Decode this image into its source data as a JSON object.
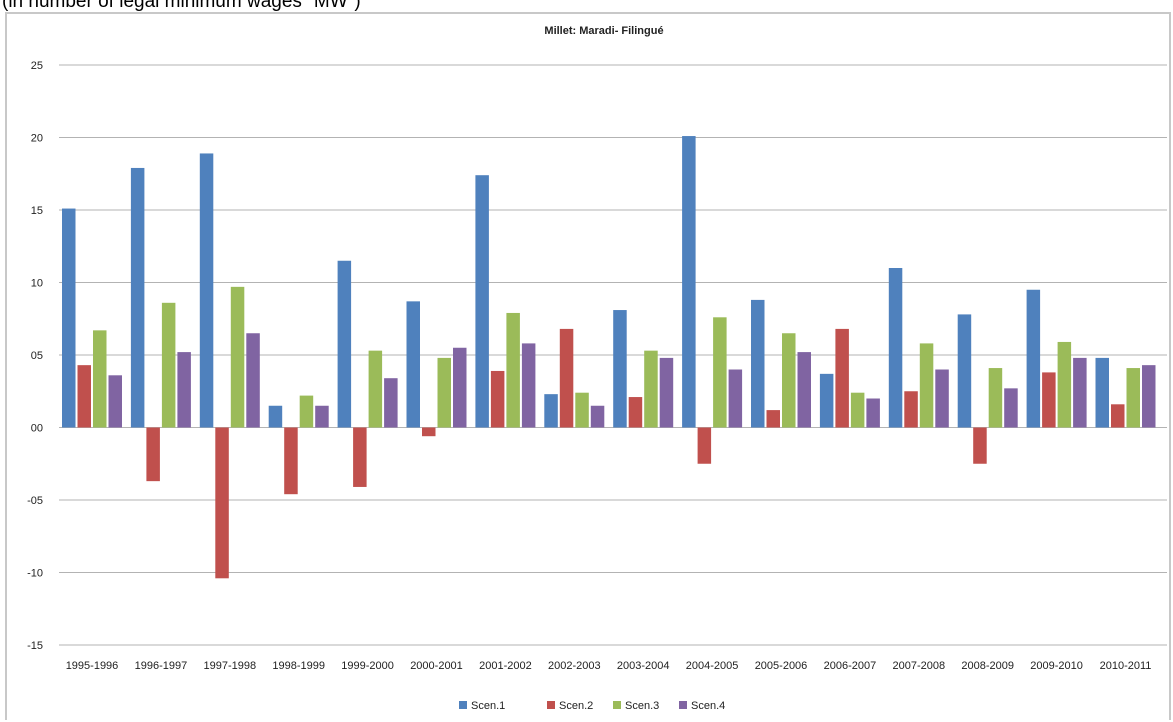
{
  "page": {
    "caption": "(in number of legal minimum wages \"MW\")"
  },
  "chart_data": {
    "type": "bar",
    "title": "Millet: Maradi- Filingué",
    "xlabel": "",
    "ylabel": "",
    "ylim": [
      -15,
      25
    ],
    "ytick_values": [
      25,
      20,
      15,
      10,
      5,
      0,
      -5,
      -10,
      -15
    ],
    "ytick_labels": [
      "25",
      "20",
      "15",
      "10",
      "05",
      "00",
      "-05",
      "-10",
      "-15"
    ],
    "grid": true,
    "legend_position": "bottom",
    "categories": [
      "1995-1996",
      "1996-1997",
      "1997-1998",
      "1998-1999",
      "1999-2000",
      "2000-2001",
      "2001-2002",
      "2002-2003",
      "2003-2004",
      "2004-2005",
      "2005-2006",
      "2006-2007",
      "2007-2008",
      "2008-2009",
      "2009-2010",
      "2010-2011"
    ],
    "series": [
      {
        "name": "Scen.1",
        "color": "#4f81bd",
        "values": [
          15.1,
          17.9,
          18.9,
          1.5,
          11.5,
          8.7,
          17.4,
          2.3,
          8.1,
          20.1,
          8.8,
          3.7,
          11.0,
          7.8,
          9.5,
          4.8
        ]
      },
      {
        "name": "Scen.2",
        "color": "#c0504d",
        "values": [
          4.3,
          -3.7,
          -10.4,
          -4.6,
          -4.1,
          -0.6,
          3.9,
          6.8,
          2.1,
          -2.5,
          1.2,
          6.8,
          2.5,
          -2.5,
          3.8,
          1.6
        ]
      },
      {
        "name": "Scen.3",
        "color": "#9bbb59",
        "values": [
          6.7,
          8.6,
          9.7,
          2.2,
          5.3,
          4.8,
          7.9,
          2.4,
          5.3,
          7.6,
          6.5,
          2.4,
          5.8,
          4.1,
          5.9,
          4.1
        ]
      },
      {
        "name": "Scen.4",
        "color": "#8064a2",
        "values": [
          3.6,
          5.2,
          6.5,
          1.5,
          3.4,
          5.5,
          5.8,
          1.5,
          4.8,
          4.0,
          5.2,
          2.0,
          4.0,
          2.7,
          4.8,
          4.3
        ]
      }
    ]
  }
}
